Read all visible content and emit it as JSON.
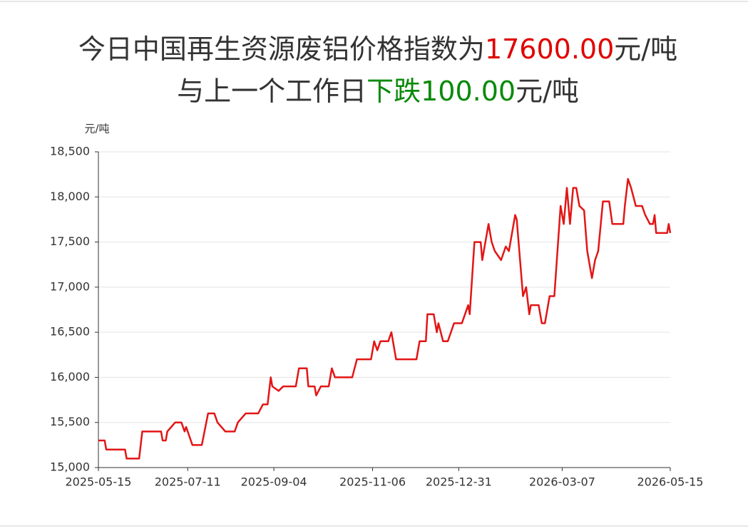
{
  "chart_data": {
    "type": "line",
    "title": [
      "今日中国再生资源废铝价格指数为",
      "17600.00",
      "元/吨"
    ],
    "subtitle": [
      "与上一个工作日",
      "下跌100.00",
      "元/吨"
    ],
    "y_label": "元/吨",
    "color": "#e31515",
    "grid": true,
    "xlim": [
      "2025-05-15",
      "2026-05-15"
    ],
    "xticks": [
      "2025-05-15",
      "2025-07-11",
      "2025-09-04",
      "2025-11-06",
      "2025-12-31",
      "2026-03-07",
      "2026-05-15"
    ],
    "ylim": [
      15000,
      18500
    ],
    "yticks": [
      {
        "value": 15000,
        "label": "15,000"
      },
      {
        "value": 15500,
        "label": "15,500"
      },
      {
        "value": 16000,
        "label": "16,000"
      },
      {
        "value": 16500,
        "label": "16,500"
      },
      {
        "value": 17000,
        "label": "17,000"
      },
      {
        "value": 17500,
        "label": "17,500"
      },
      {
        "value": 18000,
        "label": "18,000"
      },
      {
        "value": 18500,
        "label": "18,500"
      }
    ],
    "x": [
      "2025-05-15",
      "2025-05-19",
      "2025-05-20",
      "2025-06-01",
      "2025-06-02",
      "2025-06-10",
      "2025-06-12",
      "2025-06-24",
      "2025-06-25",
      "2025-06-27",
      "2025-06-28",
      "2025-07-03",
      "2025-07-07",
      "2025-07-09",
      "2025-07-10",
      "2025-07-14",
      "2025-07-20",
      "2025-07-24",
      "2025-07-28",
      "2025-07-30",
      "2025-08-04",
      "2025-08-10",
      "2025-08-12",
      "2025-08-17",
      "2025-08-25",
      "2025-08-28",
      "2025-08-31",
      "2025-09-02",
      "2025-09-03",
      "2025-09-07",
      "2025-09-10",
      "2025-09-18",
      "2025-09-20",
      "2025-09-25",
      "2025-09-26",
      "2025-09-30",
      "2025-10-01",
      "2025-10-04",
      "2025-10-09",
      "2025-10-11",
      "2025-10-13",
      "2025-10-24",
      "2025-10-27",
      "2025-11-05",
      "2025-11-07",
      "2025-11-09",
      "2025-11-11",
      "2025-11-16",
      "2025-11-18",
      "2025-11-21",
      "2025-12-04",
      "2025-12-06",
      "2025-12-10",
      "2025-12-11",
      "2025-12-15",
      "2025-12-17",
      "2025-12-18",
      "2025-12-21",
      "2025-12-24",
      "2025-12-26",
      "2025-12-28",
      "2026-01-02",
      "2026-01-04",
      "2026-01-06",
      "2026-01-07",
      "2026-01-10",
      "2026-01-14",
      "2026-01-15",
      "2026-01-17",
      "2026-01-19",
      "2026-01-21",
      "2026-01-23",
      "2026-01-27",
      "2026-01-30",
      "2026-02-01",
      "2026-02-05",
      "2026-02-06",
      "2026-02-10",
      "2026-02-12",
      "2026-02-14",
      "2026-02-15",
      "2026-02-20",
      "2026-02-22",
      "2026-02-24",
      "2026-02-27",
      "2026-03-02",
      "2026-03-06",
      "2026-03-08",
      "2026-03-10",
      "2026-03-12",
      "2026-03-14",
      "2026-03-16",
      "2026-03-18",
      "2026-03-21",
      "2026-03-23",
      "2026-03-26",
      "2026-03-28",
      "2026-03-30",
      "2026-04-02",
      "2026-04-06",
      "2026-04-08",
      "2026-04-15",
      "2026-04-16",
      "2026-04-18",
      "2026-04-20",
      "2026-04-23",
      "2026-04-27",
      "2026-04-29",
      "2026-05-02",
      "2026-05-04",
      "2026-05-05",
      "2026-05-06",
      "2026-05-13",
      "2026-05-14",
      "2026-05-15"
    ],
    "values": [
      15300,
      15300,
      15200,
      15200,
      15100,
      15100,
      15400,
      15400,
      15300,
      15300,
      15400,
      15500,
      15500,
      15400,
      15450,
      15250,
      15250,
      15600,
      15600,
      15500,
      15400,
      15400,
      15500,
      15600,
      15600,
      15700,
      15700,
      16000,
      15900,
      15850,
      15900,
      15900,
      16100,
      16100,
      15900,
      15900,
      15800,
      15900,
      15900,
      16100,
      16000,
      16000,
      16200,
      16200,
      16400,
      16300,
      16400,
      16400,
      16500,
      16200,
      16200,
      16400,
      16400,
      16700,
      16700,
      16500,
      16600,
      16400,
      16400,
      16500,
      16600,
      16600,
      16700,
      16800,
      16700,
      17500,
      17500,
      17300,
      17500,
      17700,
      17500,
      17400,
      17300,
      17450,
      17400,
      17800,
      17750,
      16900,
      17000,
      16700,
      16800,
      16800,
      16600,
      16600,
      16900,
      16900,
      17900,
      17700,
      18100,
      17700,
      18100,
      18100,
      17900,
      17850,
      17400,
      17100,
      17300,
      17400,
      17950,
      17950,
      17700,
      17700,
      17900,
      18200,
      18100,
      17900,
      17900,
      17800,
      17700,
      17700,
      17800,
      17600,
      17600,
      17700,
      17600
    ]
  }
}
